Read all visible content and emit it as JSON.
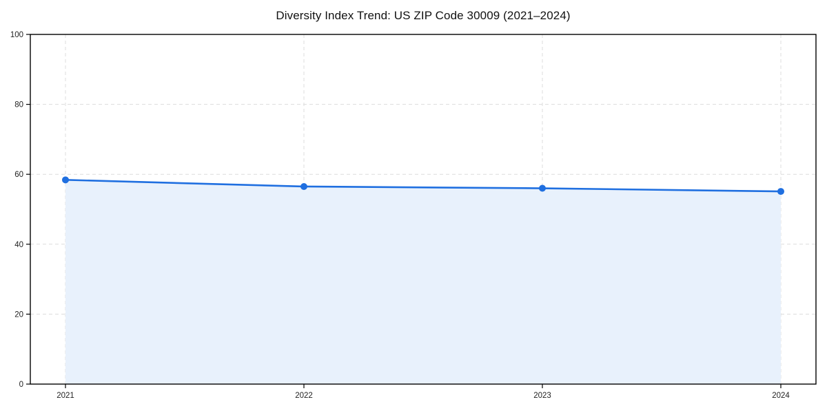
{
  "chart_data": {
    "type": "line",
    "title": "Diversity Index Trend: US ZIP Code 30009 (2021–2024)",
    "categories": [
      "2021",
      "2022",
      "2023",
      "2024"
    ],
    "series": [
      {
        "name": "Diversity Index",
        "values": [
          58.4,
          56.5,
          56.0,
          55.1
        ]
      }
    ],
    "xlabel": "",
    "ylabel": "",
    "ylim": [
      0,
      100
    ],
    "yticks": [
      0,
      20,
      40,
      60,
      80,
      100
    ],
    "grid": "dashed",
    "legend": "none",
    "style": {
      "line_color": "#1f6fe0",
      "marker_color": "#1f6fe0",
      "fill_color": "#e8f1fc",
      "grid_color": "#dcdcdc",
      "spine_color": "#000000",
      "area_to_baseline": true,
      "marker": "circle"
    }
  }
}
